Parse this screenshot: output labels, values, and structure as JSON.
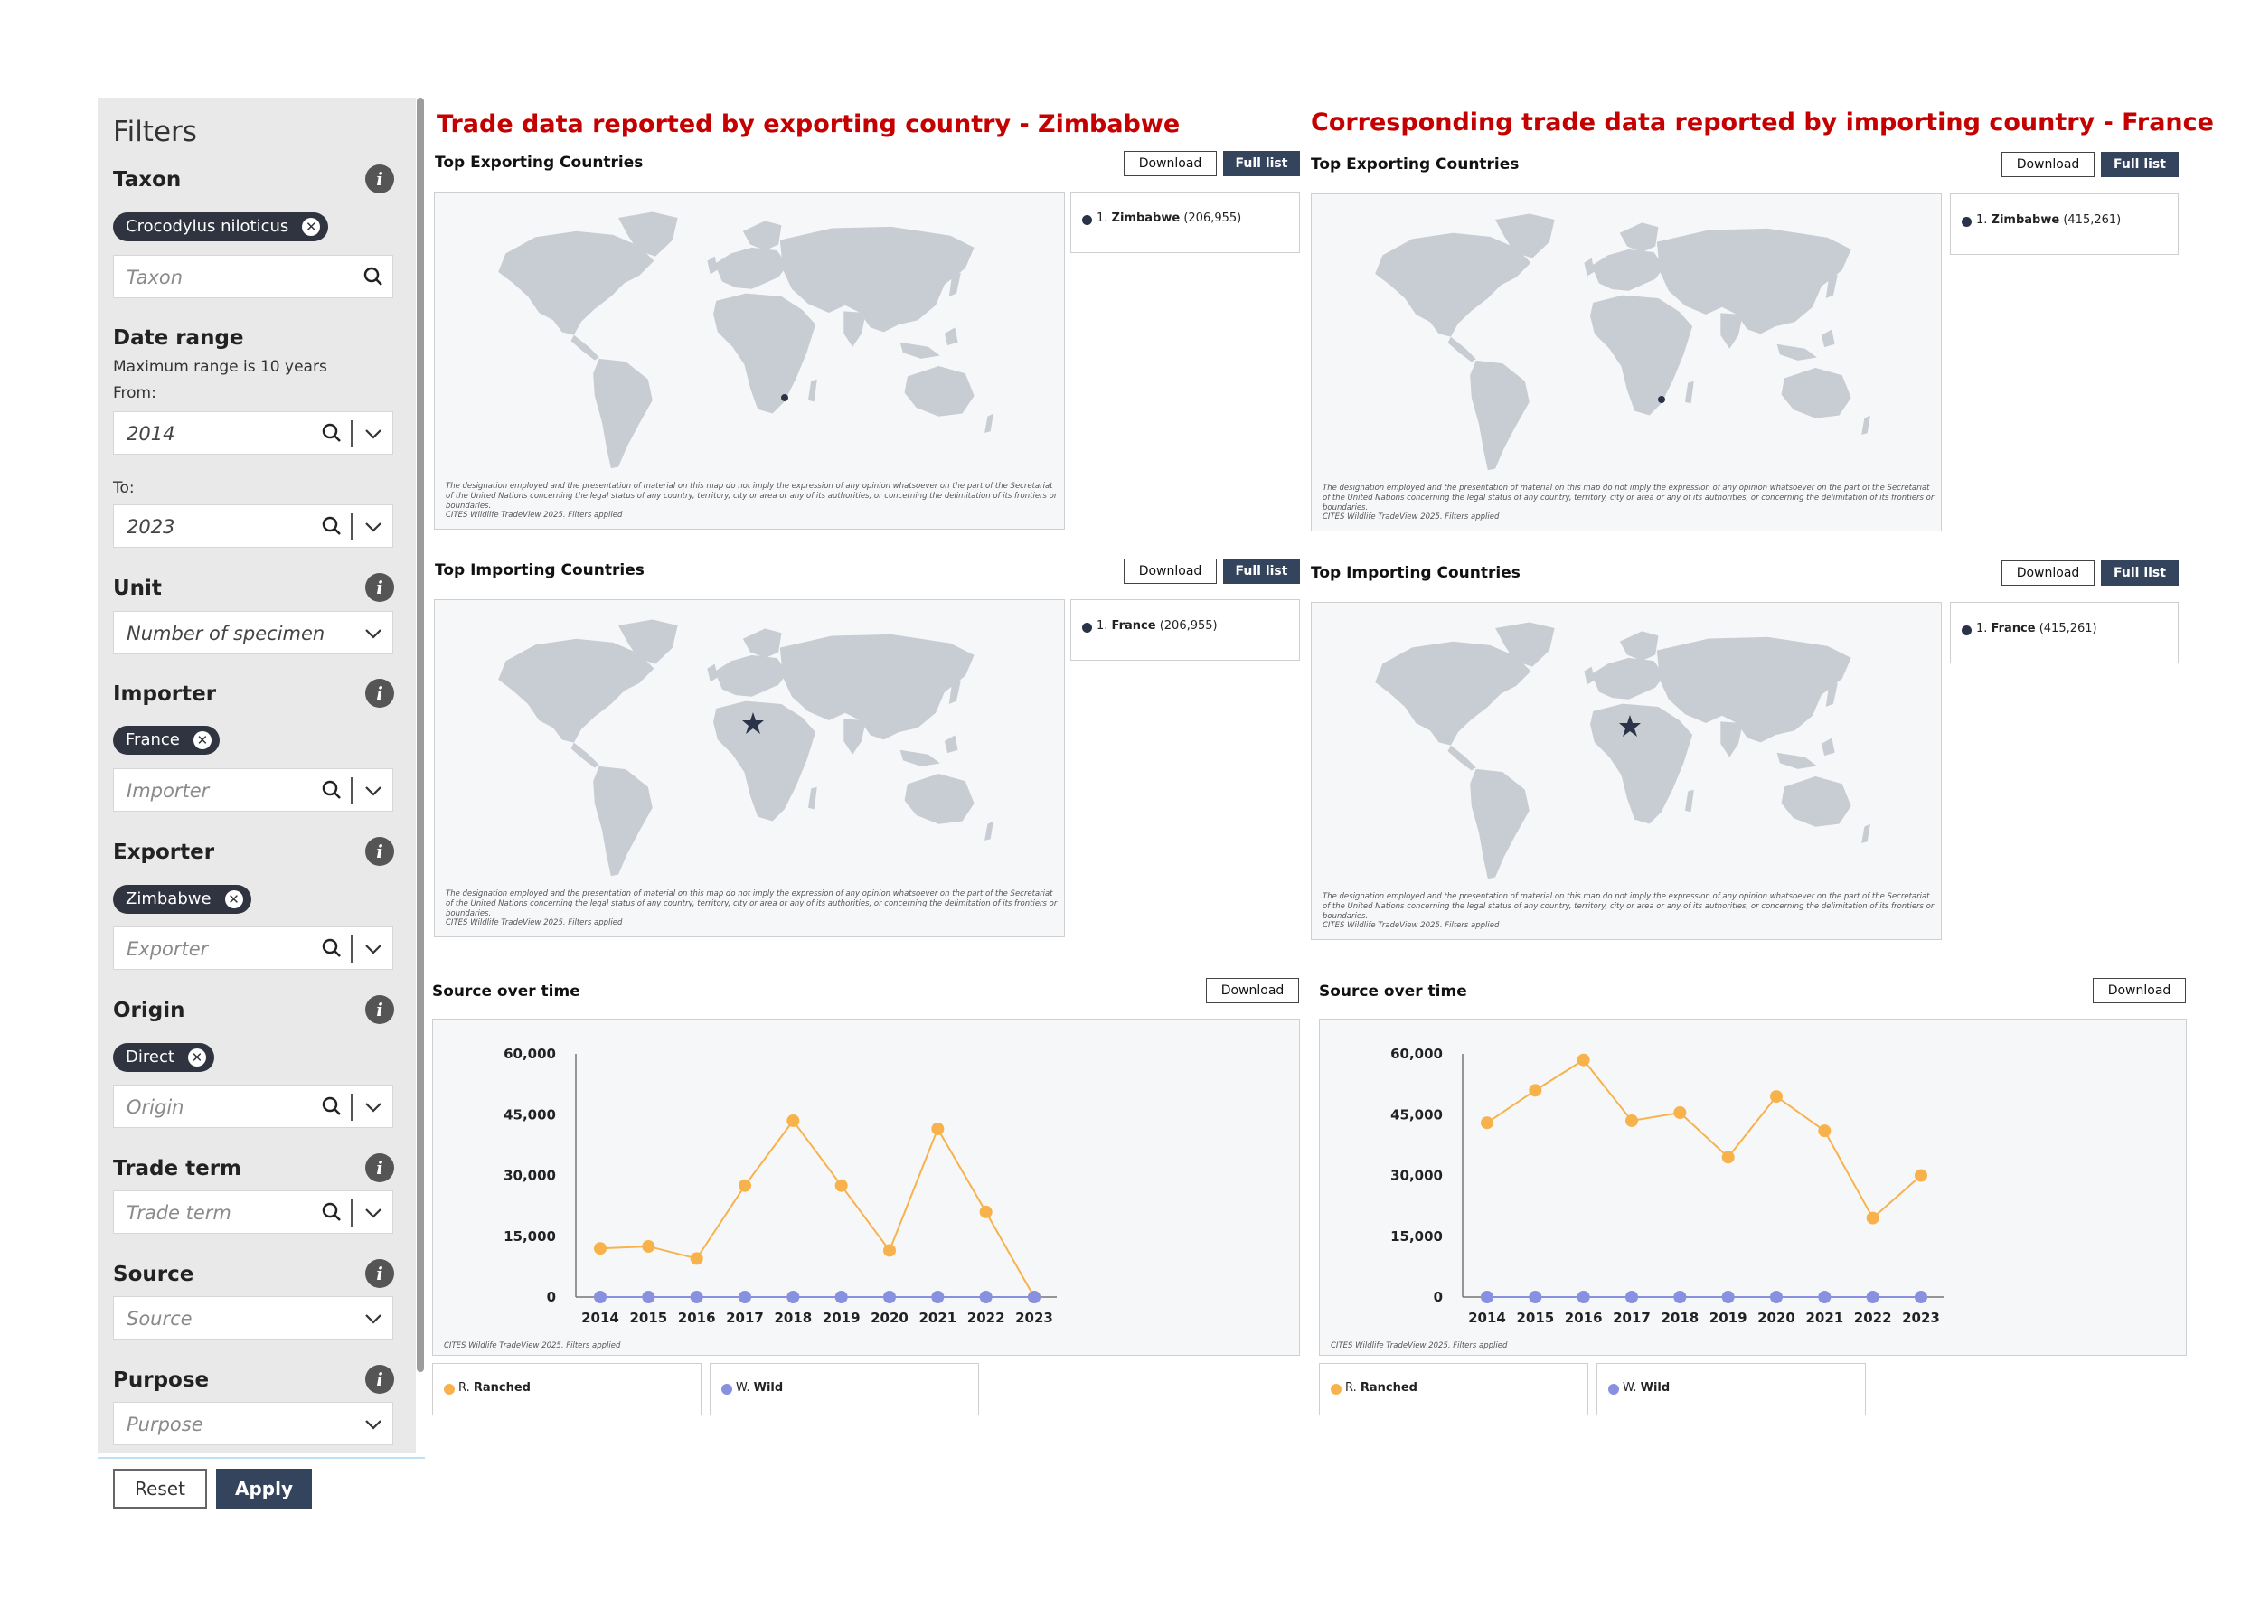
{
  "sidebar": {
    "title": "Filters",
    "taxon": {
      "label": "Taxon",
      "chip": "Crocodylus niloticus",
      "placeholder": "Taxon"
    },
    "date_range": {
      "label": "Date range",
      "note": "Maximum range is 10 years",
      "from_label": "From:",
      "from_value": "2014",
      "to_label": "To:",
      "to_value": "2023"
    },
    "unit": {
      "label": "Unit",
      "value": "Number of specimen"
    },
    "importer": {
      "label": "Importer",
      "chip": "France",
      "placeholder": "Importer"
    },
    "exporter": {
      "label": "Exporter",
      "chip": "Zimbabwe",
      "placeholder": "Exporter"
    },
    "origin": {
      "label": "Origin",
      "chip": "Direct",
      "placeholder": "Origin"
    },
    "trade_term": {
      "label": "Trade term",
      "placeholder": "Trade term"
    },
    "source": {
      "label": "Source",
      "placeholder": "Source"
    },
    "purpose": {
      "label": "Purpose",
      "placeholder": "Purpose"
    },
    "reset_label": "Reset",
    "apply_label": "Apply"
  },
  "common": {
    "download_label": "Download",
    "full_list_label": "Full list",
    "map_disclaimer": "The designation employed and the presentation of material on this map do not imply the expression of any opinion whatsoever on the part of the Secretariat of the United Nations concerning the legal status of any country, territory, city or area or any of its authorities, or concerning the delimitation of its frontiers or boundaries.",
    "credit": "CITES Wildlife TradeView 2025. Filters applied"
  },
  "panels": [
    {
      "heading": "Trade data reported by exporting country  - Zimbabwe",
      "exporting": {
        "title": "Top Exporting Countries",
        "rank": "1.",
        "country": "Zimbabwe",
        "value": "(206,955)"
      },
      "importing": {
        "title": "Top Importing Countries",
        "rank": "1.",
        "country": "France",
        "value": "(206,955)"
      },
      "source_over_time": {
        "title": "Source over time"
      }
    },
    {
      "heading": "Corresponding trade data reported by importing country  - France",
      "exporting": {
        "title": "Top Exporting Countries",
        "rank": "1.",
        "country": "Zimbabwe",
        "value": "(415,261)"
      },
      "importing": {
        "title": "Top Importing Countries",
        "rank": "1.",
        "country": "France",
        "value": "(415,261)"
      },
      "source_over_time": {
        "title": "Source over time"
      }
    }
  ],
  "chart_data": [
    {
      "type": "line",
      "x": [
        "2014",
        "2015",
        "2016",
        "2017",
        "2018",
        "2019",
        "2020",
        "2021",
        "2022",
        "2023"
      ],
      "ylim": [
        0,
        60000
      ],
      "yticks": [
        "60,000",
        "45,000",
        "30,000",
        "15,000",
        "0"
      ],
      "ytick_values": [
        60000,
        45000,
        30000,
        15000,
        0
      ],
      "series": [
        {
          "name": "R. Ranched",
          "code": "R.",
          "label": "Ranched",
          "color": "#f8b24c",
          "values": [
            12000,
            12500,
            9500,
            27500,
            43500,
            27500,
            11500,
            41500,
            21000,
            0
          ]
        },
        {
          "name": "W. Wild",
          "code": "W.",
          "label": "Wild",
          "color": "#8891e0",
          "values": [
            0,
            0,
            0,
            0,
            0,
            0,
            0,
            0,
            0,
            0
          ]
        }
      ]
    },
    {
      "type": "line",
      "x": [
        "2014",
        "2015",
        "2016",
        "2017",
        "2018",
        "2019",
        "2020",
        "2021",
        "2022",
        "2023"
      ],
      "ylim": [
        0,
        60000
      ],
      "yticks": [
        "60,000",
        "45,000",
        "30,000",
        "15,000",
        "0"
      ],
      "ytick_values": [
        60000,
        45000,
        30000,
        15000,
        0
      ],
      "series": [
        {
          "name": "R. Ranched",
          "code": "R.",
          "label": "Ranched",
          "color": "#f8b24c",
          "values": [
            43000,
            51000,
            58500,
            43500,
            45500,
            34500,
            49500,
            41000,
            19500,
            30000
          ]
        },
        {
          "name": "W. Wild",
          "code": "W.",
          "label": "Wild",
          "color": "#8891e0",
          "values": [
            0,
            0,
            0,
            0,
            0,
            0,
            0,
            0,
            0,
            0
          ]
        }
      ]
    }
  ]
}
